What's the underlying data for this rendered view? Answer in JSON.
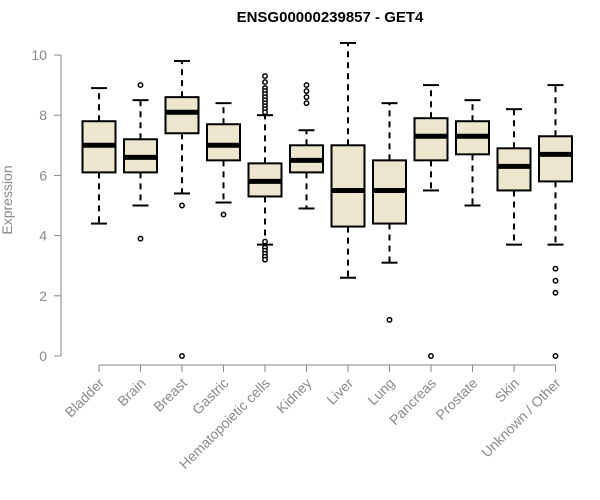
{
  "chart_data": {
    "type": "box",
    "title": "ENSG00000239857 - GET4",
    "xlabel": "",
    "ylabel": "Expression",
    "ylim": [
      0,
      10.5
    ],
    "yticks": [
      0,
      2,
      4,
      6,
      8,
      10
    ],
    "grid": false,
    "colors": {
      "box_fill": "#ede6cf",
      "stroke": "#000000",
      "axis": "#8a8a8a"
    },
    "categories": [
      "Bladder",
      "Brain",
      "Breast",
      "Gastric",
      "Hematopoietic cells",
      "Kidney",
      "Liver",
      "Lung",
      "Pancreas",
      "Prostate",
      "Skin",
      "Unknown / Other"
    ],
    "boxes": [
      {
        "min": 4.4,
        "q1": 6.1,
        "median": 7.0,
        "q3": 7.8,
        "max": 8.9,
        "outliers": []
      },
      {
        "min": 5.0,
        "q1": 6.1,
        "median": 6.6,
        "q3": 7.2,
        "max": 8.5,
        "outliers": [
          9.0,
          3.9
        ]
      },
      {
        "min": 5.4,
        "q1": 7.4,
        "median": 8.1,
        "q3": 8.6,
        "max": 9.8,
        "outliers": [
          5.0,
          0.0
        ]
      },
      {
        "min": 5.1,
        "q1": 6.5,
        "median": 7.0,
        "q3": 7.7,
        "max": 8.4,
        "outliers": [
          4.7
        ]
      },
      {
        "min": 3.7,
        "q1": 5.3,
        "median": 5.8,
        "q3": 6.4,
        "max": 8.0,
        "outliers": [
          9.3,
          9.1,
          8.9,
          8.8,
          8.7,
          8.6,
          8.5,
          8.4,
          8.3,
          8.2,
          8.1,
          3.8,
          3.6,
          3.5,
          3.4,
          3.3,
          3.2
        ]
      },
      {
        "min": 4.9,
        "q1": 6.1,
        "median": 6.5,
        "q3": 7.0,
        "max": 7.5,
        "outliers": [
          9.0,
          8.8,
          8.6,
          8.4
        ]
      },
      {
        "min": 2.6,
        "q1": 4.3,
        "median": 5.5,
        "q3": 7.0,
        "max": 10.4,
        "outliers": []
      },
      {
        "min": 3.1,
        "q1": 4.4,
        "median": 5.5,
        "q3": 6.5,
        "max": 8.4,
        "outliers": [
          1.2
        ]
      },
      {
        "min": 5.5,
        "q1": 6.5,
        "median": 7.3,
        "q3": 7.9,
        "max": 9.0,
        "outliers": [
          0.0
        ]
      },
      {
        "min": 5.0,
        "q1": 6.7,
        "median": 7.3,
        "q3": 7.8,
        "max": 8.5,
        "outliers": []
      },
      {
        "min": 3.7,
        "q1": 5.5,
        "median": 6.3,
        "q3": 6.9,
        "max": 8.2,
        "outliers": []
      },
      {
        "min": 3.7,
        "q1": 5.8,
        "median": 6.7,
        "q3": 7.3,
        "max": 9.0,
        "outliers": [
          2.9,
          2.5,
          2.1,
          0.0
        ]
      }
    ]
  }
}
